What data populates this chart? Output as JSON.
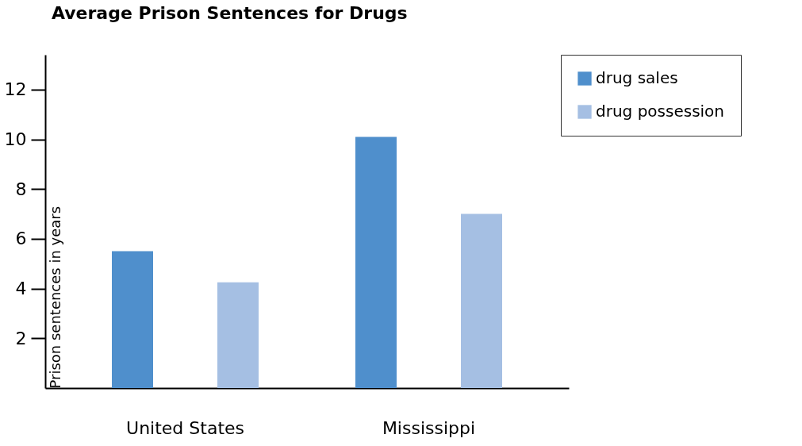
{
  "chart_data": {
    "type": "bar",
    "title": "Average Prison Sentences for Drugs",
    "ylabel": "Prison sentences in years",
    "categories": [
      "United States",
      "Mississippi"
    ],
    "series": [
      {
        "name": "drug sales",
        "color": "#4f8fcc",
        "values": [
          5.5,
          10.1
        ]
      },
      {
        "name": "drug possession",
        "color": "#a5bfe3",
        "values": [
          4.25,
          7.0
        ]
      }
    ],
    "ylim": [
      0,
      13.4
    ],
    "yticks": [
      2,
      4,
      6,
      8,
      10,
      12
    ],
    "grid": false,
    "legend": "top right"
  }
}
